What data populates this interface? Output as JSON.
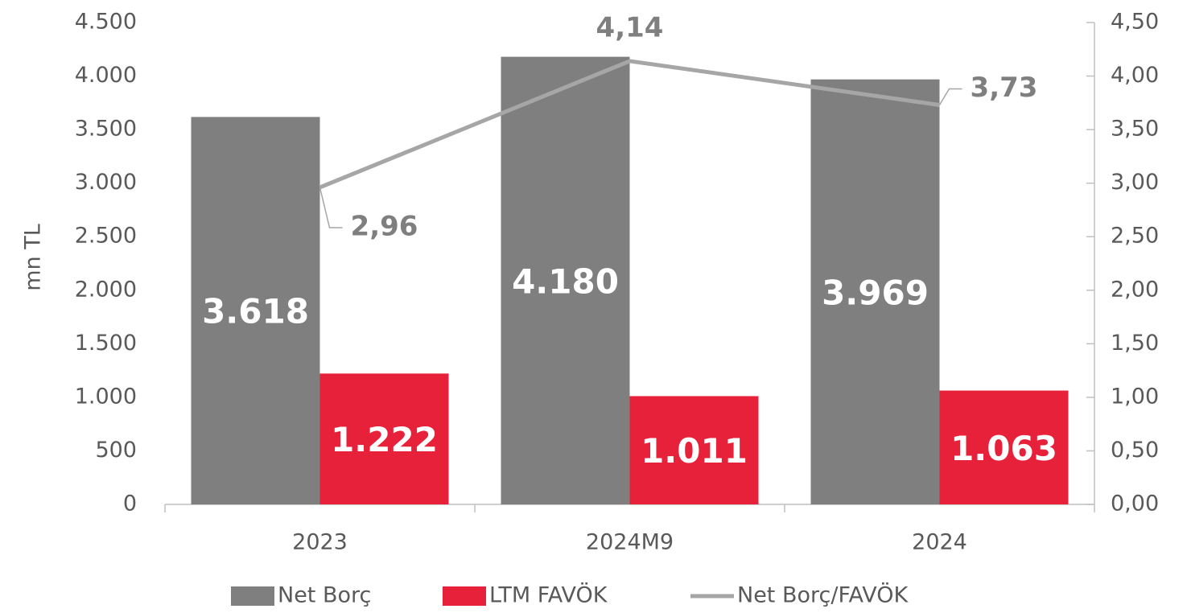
{
  "chart_data": {
    "type": "bar-line",
    "y_label": "mn TL",
    "categories": [
      "2023",
      "2024M9",
      "2024"
    ],
    "series": [
      {
        "name": "Net Borç",
        "type": "bar",
        "color": "#7f7f7f",
        "values": [
          3618,
          4180,
          3969
        ],
        "value_labels": [
          "3.618",
          "4.180",
          "3.969"
        ]
      },
      {
        "name": "LTM FAVÖK",
        "type": "bar",
        "color": "#e8213a",
        "values": [
          1222,
          1011,
          1063
        ],
        "value_labels": [
          "1.222",
          "1.011",
          "1.063"
        ]
      },
      {
        "name": "Net Borç/FAVÖK",
        "type": "line",
        "axis": "y2",
        "color": "#a6a6a6",
        "values": [
          2.96,
          4.14,
          3.73
        ],
        "value_labels": [
          "2,96",
          "4,14",
          "3,73"
        ]
      }
    ],
    "ylim": [
      0,
      4500
    ],
    "yticks": [
      0,
      500,
      {
        "value": 1000,
        "label": "1.000"
      },
      {
        "value": 1500,
        "label": "1.500"
      },
      {
        "value": 2000,
        "label": "2.000"
      },
      {
        "value": 2500,
        "label": "2.500"
      },
      {
        "value": 3000,
        "label": "3.000"
      },
      {
        "value": 3500,
        "label": "3.500"
      },
      {
        "value": 4000,
        "label": "4.000"
      },
      {
        "value": 4500,
        "label": "4.500"
      }
    ],
    "y2lim": [
      0,
      4.5
    ],
    "y2ticks": [
      {
        "value": 0,
        "label": "0,00"
      },
      {
        "value": 0.5,
        "label": "0,50"
      },
      {
        "value": 1,
        "label": "1,00"
      },
      {
        "value": 1.5,
        "label": "1,50"
      },
      {
        "value": 2,
        "label": "2,00"
      },
      {
        "value": 2.5,
        "label": "2,50"
      },
      {
        "value": 3,
        "label": "3,00"
      },
      {
        "value": 3.5,
        "label": "3,50"
      },
      {
        "value": 4,
        "label": "4,00"
      },
      {
        "value": 4.5,
        "label": "4,50"
      }
    ],
    "legend": "bottom"
  }
}
